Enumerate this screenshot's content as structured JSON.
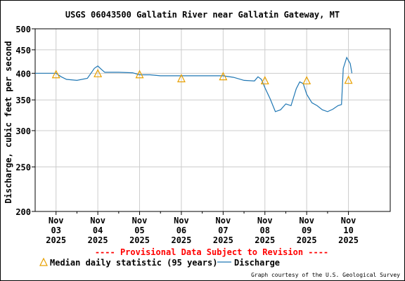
{
  "chart_data": {
    "type": "line",
    "title": "USGS 06043500 Gallatin River near Gallatin Gateway, MT",
    "ylabel": "Discharge, cubic feet per second",
    "xlabel": "",
    "y_scale": "log",
    "ylim": [
      200,
      500
    ],
    "yticks": [
      200,
      250,
      300,
      350,
      400,
      450,
      500
    ],
    "xlim": [
      "2025-11-02 12:00",
      "2025-11-11 00:00"
    ],
    "x_tick_labels": [
      {
        "date": "2025-11-03",
        "lines": [
          "Nov",
          "03",
          "2025"
        ]
      },
      {
        "date": "2025-11-04",
        "lines": [
          "Nov",
          "04",
          "2025"
        ]
      },
      {
        "date": "2025-11-05",
        "lines": [
          "Nov",
          "05",
          "2025"
        ]
      },
      {
        "date": "2025-11-06",
        "lines": [
          "Nov",
          "06",
          "2025"
        ]
      },
      {
        "date": "2025-11-07",
        "lines": [
          "Nov",
          "07",
          "2025"
        ]
      },
      {
        "date": "2025-11-08",
        "lines": [
          "Nov",
          "08",
          "2025"
        ]
      },
      {
        "date": "2025-11-09",
        "lines": [
          "Nov",
          "09",
          "2025"
        ]
      },
      {
        "date": "2025-11-10",
        "lines": [
          "Nov",
          "10",
          "2025"
        ]
      }
    ],
    "grid": true,
    "series": [
      {
        "name": "Discharge",
        "color": "#1f77b4",
        "points": [
          [
            "2025-11-02 12:00",
            400
          ],
          [
            "2025-11-03 00:00",
            400
          ],
          [
            "2025-11-03 03:00",
            393
          ],
          [
            "2025-11-03 06:00",
            388
          ],
          [
            "2025-11-03 12:00",
            386
          ],
          [
            "2025-11-03 18:00",
            390
          ],
          [
            "2025-11-03 22:00",
            410
          ],
          [
            "2025-11-04 00:00",
            415
          ],
          [
            "2025-11-04 02:00",
            408
          ],
          [
            "2025-11-04 04:00",
            402
          ],
          [
            "2025-11-04 12:00",
            402
          ],
          [
            "2025-11-04 20:00",
            401
          ],
          [
            "2025-11-05 00:00",
            397
          ],
          [
            "2025-11-05 06:00",
            397
          ],
          [
            "2025-11-05 12:00",
            395
          ],
          [
            "2025-11-06 00:00",
            395
          ],
          [
            "2025-11-06 12:00",
            395
          ],
          [
            "2025-11-07 00:00",
            395
          ],
          [
            "2025-11-07 06:00",
            392
          ],
          [
            "2025-11-07 12:00",
            386
          ],
          [
            "2025-11-07 18:00",
            385
          ],
          [
            "2025-11-07 20:00",
            393
          ],
          [
            "2025-11-07 22:00",
            388
          ],
          [
            "2025-11-08 00:00",
            372
          ],
          [
            "2025-11-08 03:00",
            352
          ],
          [
            "2025-11-08 06:00",
            330
          ],
          [
            "2025-11-08 09:00",
            333
          ],
          [
            "2025-11-08 12:00",
            343
          ],
          [
            "2025-11-08 15:00",
            340
          ],
          [
            "2025-11-08 18:00",
            370
          ],
          [
            "2025-11-08 20:00",
            383
          ],
          [
            "2025-11-08 22:00",
            380
          ],
          [
            "2025-11-09 00:00",
            360
          ],
          [
            "2025-11-09 03:00",
            345
          ],
          [
            "2025-11-09 06:00",
            340
          ],
          [
            "2025-11-09 09:00",
            333
          ],
          [
            "2025-11-09 12:00",
            330
          ],
          [
            "2025-11-09 15:00",
            334
          ],
          [
            "2025-11-09 18:00",
            340
          ],
          [
            "2025-11-09 20:00",
            342
          ],
          [
            "2025-11-09 21:00",
            410
          ],
          [
            "2025-11-09 23:00",
            433
          ],
          [
            "2025-11-10 01:00",
            420
          ],
          [
            "2025-11-10 02:00",
            400
          ]
        ]
      },
      {
        "name": "Median daily statistic (95 years)",
        "color": "#e8a000",
        "marker": "triangle",
        "points": [
          [
            "2025-11-03 00:00",
            398
          ],
          [
            "2025-11-04 00:00",
            400
          ],
          [
            "2025-11-05 00:00",
            398
          ],
          [
            "2025-11-06 00:00",
            390
          ],
          [
            "2025-11-07 00:00",
            394
          ],
          [
            "2025-11-08 00:00",
            386
          ],
          [
            "2025-11-09 00:00",
            386
          ],
          [
            "2025-11-10 00:00",
            387
          ]
        ]
      }
    ],
    "legend": {
      "position": "bottom",
      "provisional": "---- Provisional Data Subject to Revision ----",
      "median_label": "Median daily statistic (95 years)",
      "discharge_label": "Discharge"
    },
    "credit": "Graph courtesy of the U.S. Geological Survey",
    "colors": {
      "provisional": "#ff0000",
      "grid": "#cccccc",
      "axis": "#000000"
    }
  }
}
